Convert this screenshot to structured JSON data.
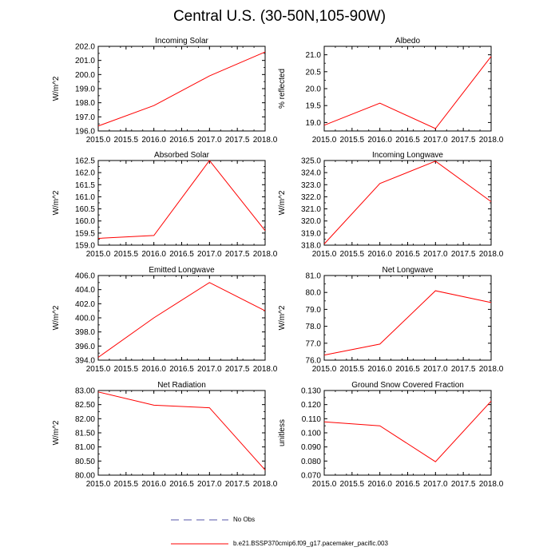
{
  "page": {
    "title": "Central U.S. (30-50N,105-90W)"
  },
  "legend": {
    "entries": [
      {
        "label": "No Obs",
        "style": "dashed",
        "color": "#5555aa"
      },
      {
        "label": "b.e21.BSSP370cmip6.f09_g17.pacemaker_pacific.003",
        "style": "solid",
        "color": "#ff0000"
      }
    ]
  },
  "chart_data": [
    {
      "type": "line",
      "title": "Incoming Solar",
      "xlabel": "",
      "ylabel": "W/m^2",
      "xlim": [
        2015.0,
        2018.0
      ],
      "xticks": [
        "2015.0",
        "2015.5",
        "2016.0",
        "2016.5",
        "2017.0",
        "2017.5",
        "2018.0"
      ],
      "ylim": [
        196.0,
        202.0
      ],
      "yticks": [
        "196.0",
        "197.0",
        "198.0",
        "199.0",
        "200.0",
        "201.0",
        "202.0"
      ],
      "series": [
        {
          "name": "b.e21.BSSP370cmip6.f09_g17.pacemaker_pacific.003",
          "color": "#ff0000",
          "x": [
            2015,
            2016,
            2017,
            2018
          ],
          "y": [
            196.35,
            197.8,
            199.9,
            201.6
          ]
        }
      ]
    },
    {
      "type": "line",
      "title": "Albedo",
      "xlabel": "",
      "ylabel": "% reflected",
      "xlim": [
        2015.0,
        2018.0
      ],
      "xticks": [
        "2015.0",
        "2015.5",
        "2016.0",
        "2016.5",
        "2017.0",
        "2017.5",
        "2018.0"
      ],
      "ylim": [
        18.75,
        21.25
      ],
      "yticks": [
        "19.0",
        "19.5",
        "20.0",
        "20.5",
        "21.0"
      ],
      "series": [
        {
          "name": "b.e21.BSSP370cmip6.f09_g17.pacemaker_pacific.003",
          "color": "#ff0000",
          "x": [
            2015,
            2016,
            2017,
            2018
          ],
          "y": [
            18.92,
            19.57,
            18.82,
            20.95
          ]
        }
      ]
    },
    {
      "type": "line",
      "title": "Absorbed Solar",
      "xlabel": "",
      "ylabel": "W/m^2",
      "xlim": [
        2015.0,
        2018.0
      ],
      "xticks": [
        "2015.0",
        "2015.5",
        "2016.0",
        "2016.5",
        "2017.0",
        "2017.5",
        "2018.0"
      ],
      "ylim": [
        159.0,
        162.5
      ],
      "yticks": [
        "159.0",
        "159.5",
        "160.0",
        "160.5",
        "161.0",
        "161.5",
        "162.0",
        "162.5"
      ],
      "series": [
        {
          "name": "b.e21.BSSP370cmip6.f09_g17.pacemaker_pacific.003",
          "color": "#ff0000",
          "x": [
            2015,
            2016,
            2017,
            2018
          ],
          "y": [
            159.28,
            159.4,
            162.5,
            159.6
          ]
        }
      ]
    },
    {
      "type": "line",
      "title": "Incoming Longwave",
      "xlabel": "",
      "ylabel": "W/m^2",
      "xlim": [
        2015.0,
        2018.0
      ],
      "xticks": [
        "2015.0",
        "2015.5",
        "2016.0",
        "2016.5",
        "2017.0",
        "2017.5",
        "2018.0"
      ],
      "ylim": [
        318.0,
        325.0
      ],
      "yticks": [
        "318.0",
        "319.0",
        "320.0",
        "321.0",
        "322.0",
        "323.0",
        "324.0",
        "325.0"
      ],
      "series": [
        {
          "name": "b.e21.BSSP370cmip6.f09_g17.pacemaker_pacific.003",
          "color": "#ff0000",
          "x": [
            2015,
            2016,
            2017,
            2018
          ],
          "y": [
            318.1,
            323.1,
            324.95,
            321.6
          ]
        }
      ]
    },
    {
      "type": "line",
      "title": "Emitted Longwave",
      "xlabel": "",
      "ylabel": "W/m^2",
      "xlim": [
        2015.0,
        2018.0
      ],
      "xticks": [
        "2015.0",
        "2015.5",
        "2016.0",
        "2016.5",
        "2017.0",
        "2017.5",
        "2018.0"
      ],
      "ylim": [
        394.0,
        406.0
      ],
      "yticks": [
        "394.0",
        "396.0",
        "398.0",
        "400.0",
        "402.0",
        "404.0",
        "406.0"
      ],
      "series": [
        {
          "name": "b.e21.BSSP370cmip6.f09_g17.pacemaker_pacific.003",
          "color": "#ff0000",
          "x": [
            2015,
            2016,
            2017,
            2018
          ],
          "y": [
            394.4,
            400.0,
            405.0,
            401.0
          ]
        }
      ]
    },
    {
      "type": "line",
      "title": "Net Longwave",
      "xlabel": "",
      "ylabel": "W/m^2",
      "xlim": [
        2015.0,
        2018.0
      ],
      "xticks": [
        "2015.0",
        "2015.5",
        "2016.0",
        "2016.5",
        "2017.0",
        "2017.5",
        "2018.0"
      ],
      "ylim": [
        76.0,
        81.0
      ],
      "yticks": [
        "76.0",
        "77.0",
        "78.0",
        "79.0",
        "80.0",
        "81.0"
      ],
      "series": [
        {
          "name": "b.e21.BSSP370cmip6.f09_g17.pacemaker_pacific.003",
          "color": "#ff0000",
          "x": [
            2015,
            2016,
            2017,
            2018
          ],
          "y": [
            76.3,
            76.95,
            80.1,
            79.4
          ]
        }
      ]
    },
    {
      "type": "line",
      "title": "Net Radiation",
      "xlabel": "",
      "ylabel": "W/m^2",
      "xlim": [
        2015.0,
        2018.0
      ],
      "xticks": [
        "2015.0",
        "2015.5",
        "2016.0",
        "2016.5",
        "2017.0",
        "2017.5",
        "2018.0"
      ],
      "ylim": [
        80.0,
        83.0
      ],
      "yticks": [
        "80.00",
        "80.50",
        "81.00",
        "81.50",
        "82.00",
        "82.50",
        "83.00"
      ],
      "series": [
        {
          "name": "b.e21.BSSP370cmip6.f09_g17.pacemaker_pacific.003",
          "color": "#ff0000",
          "x": [
            2015,
            2016,
            2017,
            2018
          ],
          "y": [
            82.95,
            82.48,
            82.39,
            80.18
          ]
        }
      ]
    },
    {
      "type": "line",
      "title": "Ground Snow Covered Fraction",
      "xlabel": "",
      "ylabel": "unitless",
      "xlim": [
        2015.0,
        2018.0
      ],
      "xticks": [
        "2015.0",
        "2015.5",
        "2016.0",
        "2016.5",
        "2017.0",
        "2017.5",
        "2018.0"
      ],
      "ylim": [
        0.07,
        0.13
      ],
      "yticks": [
        "0.070",
        "0.080",
        "0.090",
        "0.100",
        "0.110",
        "0.120",
        "0.130"
      ],
      "series": [
        {
          "name": "b.e21.BSSP370cmip6.f09_g17.pacemaker_pacific.003",
          "color": "#ff0000",
          "x": [
            2015,
            2016,
            2017,
            2018
          ],
          "y": [
            0.1078,
            0.105,
            0.0795,
            0.1225
          ]
        }
      ]
    }
  ]
}
